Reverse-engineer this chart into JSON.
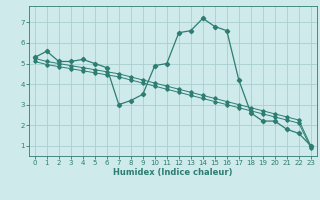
{
  "xlabel": "Humidex (Indice chaleur)",
  "bg_color": "#ceeaea",
  "grid_color": "#aacfcf",
  "line_color": "#2e7d72",
  "xlim": [
    -0.5,
    23.5
  ],
  "ylim": [
    0.5,
    7.8
  ],
  "xticks": [
    0,
    1,
    2,
    3,
    4,
    5,
    6,
    7,
    8,
    9,
    10,
    11,
    12,
    13,
    14,
    15,
    16,
    17,
    18,
    19,
    20,
    21,
    22,
    23
  ],
  "yticks": [
    1,
    2,
    3,
    4,
    5,
    6,
    7
  ],
  "series1_x": [
    0,
    1,
    2,
    3,
    4,
    5,
    6,
    7,
    8,
    9,
    10,
    11,
    12,
    13,
    14,
    15,
    16,
    17,
    18,
    19,
    20,
    21,
    22,
    23
  ],
  "series1_y": [
    5.3,
    5.6,
    5.1,
    5.1,
    5.2,
    5.0,
    4.8,
    3.0,
    3.2,
    3.5,
    4.9,
    5.0,
    6.5,
    6.6,
    7.2,
    6.8,
    6.6,
    4.2,
    2.6,
    2.2,
    2.2,
    1.8,
    1.6,
    1.0
  ],
  "series2_x": [
    0,
    1,
    2,
    3,
    4,
    5,
    6,
    7,
    8,
    9,
    10,
    11,
    12,
    13,
    14,
    15,
    16,
    17,
    18,
    19,
    20,
    21,
    22,
    23
  ],
  "series2_y": [
    5.25,
    5.1,
    5.0,
    4.9,
    4.8,
    4.7,
    4.6,
    4.5,
    4.35,
    4.2,
    4.05,
    3.9,
    3.75,
    3.6,
    3.45,
    3.3,
    3.15,
    3.0,
    2.85,
    2.7,
    2.55,
    2.4,
    2.25,
    1.0
  ],
  "series3_x": [
    0,
    1,
    2,
    3,
    4,
    5,
    6,
    7,
    8,
    9,
    10,
    11,
    12,
    13,
    14,
    15,
    16,
    17,
    18,
    19,
    20,
    21,
    22,
    23
  ],
  "series3_y": [
    5.1,
    4.95,
    4.85,
    4.75,
    4.65,
    4.55,
    4.45,
    4.35,
    4.2,
    4.05,
    3.9,
    3.75,
    3.6,
    3.45,
    3.3,
    3.15,
    3.0,
    2.85,
    2.7,
    2.55,
    2.4,
    2.25,
    2.1,
    0.9
  ]
}
